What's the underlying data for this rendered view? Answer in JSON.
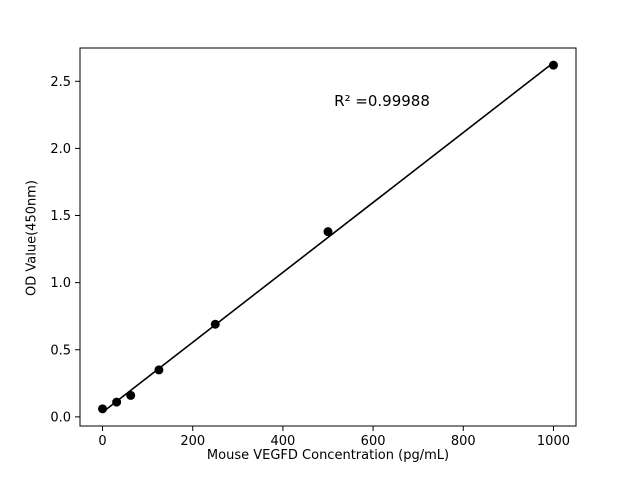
{
  "chart_data": {
    "type": "scatter",
    "x": [
      0,
      31.25,
      62.5,
      125,
      250,
      500,
      1000
    ],
    "y": [
      0.06,
      0.11,
      0.16,
      0.35,
      0.69,
      1.38,
      2.62
    ],
    "fit_line": true,
    "annotation": "R² =0.99988",
    "xlabel": "Mouse VEGFD Concentration (pg/mL)",
    "ylabel": "OD Value(450nm)",
    "x_ticks": [
      0,
      200,
      400,
      600,
      800,
      1000
    ],
    "x_tick_labels": [
      "0",
      "200",
      "400",
      "600",
      "800",
      "1000"
    ],
    "y_ticks": [
      0.0,
      0.5,
      1.0,
      1.5,
      2.0,
      2.5
    ],
    "y_tick_labels": [
      "0.0",
      "0.5",
      "1.0",
      "1.5",
      "2.0",
      "2.5"
    ],
    "xlim": [
      -50,
      1050
    ],
    "ylim": [
      -0.068,
      2.748
    ],
    "marker_color": "#000000",
    "line_color": "#000000",
    "background_color": "#ffffff",
    "legend": "none",
    "grid": "off"
  }
}
